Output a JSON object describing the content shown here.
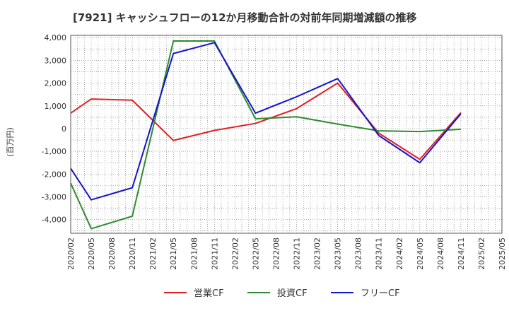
{
  "chart_data": {
    "type": "line",
    "title": "[7921]  キャッシュフローの12か月移動合計の対前年同期増減額の推移",
    "ylabel": "(百万円)",
    "xlabel": "",
    "ylim": [
      -4600,
      4100
    ],
    "yticks": [
      4000,
      3000,
      2000,
      1000,
      0,
      -1000,
      -2000,
      -3000,
      -4000
    ],
    "ytick_labels": [
      "4,000",
      "3,000",
      "2,000",
      "1,000",
      "0",
      "-1,000",
      "-2,000",
      "-3,000",
      "-4,000"
    ],
    "categories": [
      "2020/02",
      "2020/05",
      "2020/08",
      "2020/11",
      "2021/02",
      "2021/05",
      "2021/08",
      "2021/11",
      "2022/02",
      "2022/05",
      "2022/08",
      "2022/11",
      "2023/02",
      "2023/05",
      "2023/08",
      "2023/11",
      "2024/02",
      "2024/05",
      "2024/08",
      "2024/11",
      "2025/02",
      "2025/05"
    ],
    "grid": true,
    "legend_position": "bottom",
    "series": [
      {
        "name": "営業CF",
        "color": "#e02020",
        "points": [
          [
            0,
            680
          ],
          [
            1,
            1300
          ],
          [
            3,
            1250
          ],
          [
            5,
            -520
          ],
          [
            7,
            -80
          ],
          [
            9,
            230
          ],
          [
            11,
            880
          ],
          [
            13,
            2000
          ],
          [
            15,
            -200
          ],
          [
            17,
            -1350
          ],
          [
            19,
            700
          ]
        ]
      },
      {
        "name": "投資CF",
        "color": "#2e8b2e",
        "points": [
          [
            0,
            -2400
          ],
          [
            1,
            -4400
          ],
          [
            3,
            -3850
          ],
          [
            5,
            3850
          ],
          [
            7,
            3850
          ],
          [
            9,
            430
          ],
          [
            11,
            520
          ],
          [
            13,
            200
          ],
          [
            15,
            -100
          ],
          [
            17,
            -130
          ],
          [
            19,
            -30
          ]
        ]
      },
      {
        "name": "フリーCF",
        "color": "#1515cc",
        "points": [
          [
            0,
            -1750
          ],
          [
            1,
            -3130
          ],
          [
            3,
            -2600
          ],
          [
            5,
            3300
          ],
          [
            7,
            3780
          ],
          [
            9,
            680
          ],
          [
            11,
            1400
          ],
          [
            13,
            2200
          ],
          [
            15,
            -300
          ],
          [
            17,
            -1500
          ],
          [
            19,
            650
          ]
        ]
      }
    ]
  }
}
